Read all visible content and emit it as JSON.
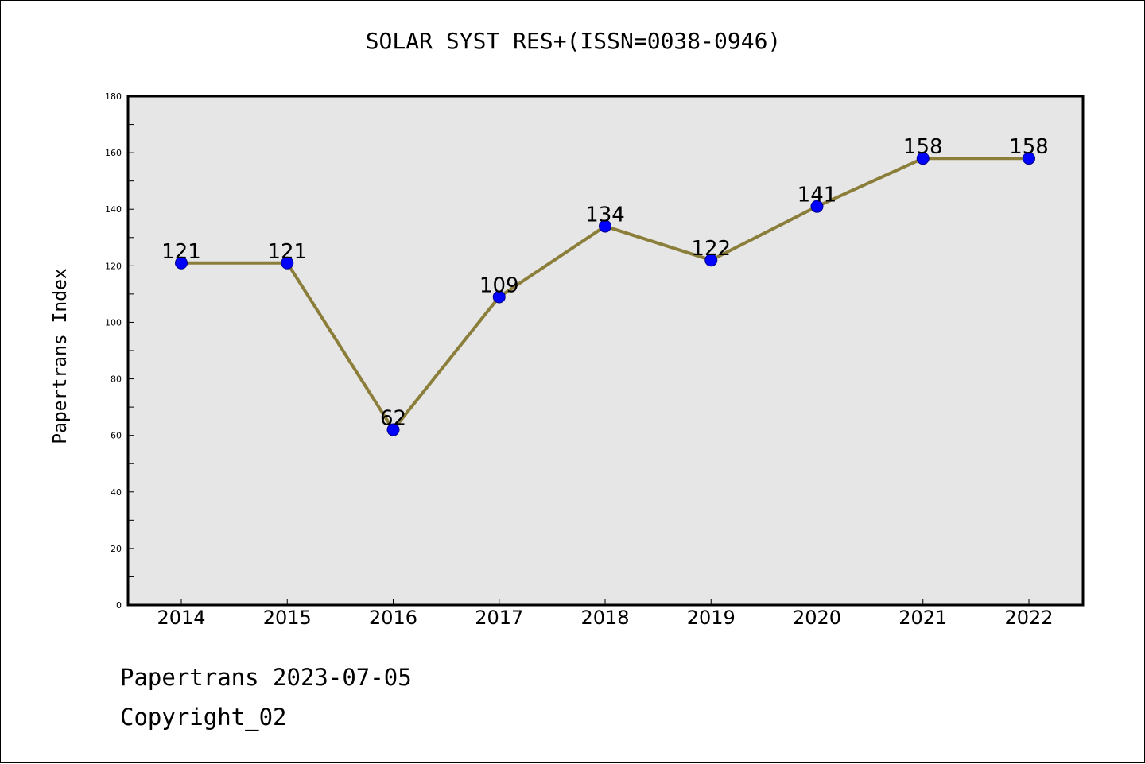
{
  "chart_data": {
    "type": "line",
    "title": "SOLAR SYST RES+(ISSN=0038-0946)",
    "xlabel": "",
    "ylabel": "Papertrans Index",
    "x": [
      "2014",
      "2015",
      "2016",
      "2017",
      "2018",
      "2019",
      "2020",
      "2021",
      "2022"
    ],
    "series": [
      {
        "values": [
          121,
          121,
          62,
          109,
          134,
          122,
          141,
          158,
          158
        ],
        "line_color": "#8b7d3a",
        "marker_color": "#0000ff"
      }
    ],
    "data_labels": [
      "121",
      "121",
      "62",
      "109",
      "134",
      "122",
      "141",
      "158",
      "158"
    ],
    "ylim": [
      0,
      180
    ],
    "yticks": [
      "0",
      "20",
      "40",
      "60",
      "80",
      "100",
      "120",
      "140",
      "160",
      "180"
    ],
    "grid": false,
    "plot_background": "#e6e6e6"
  },
  "footer": {
    "line1": "Papertrans 2023-07-05",
    "line2": "Copyright_02"
  }
}
